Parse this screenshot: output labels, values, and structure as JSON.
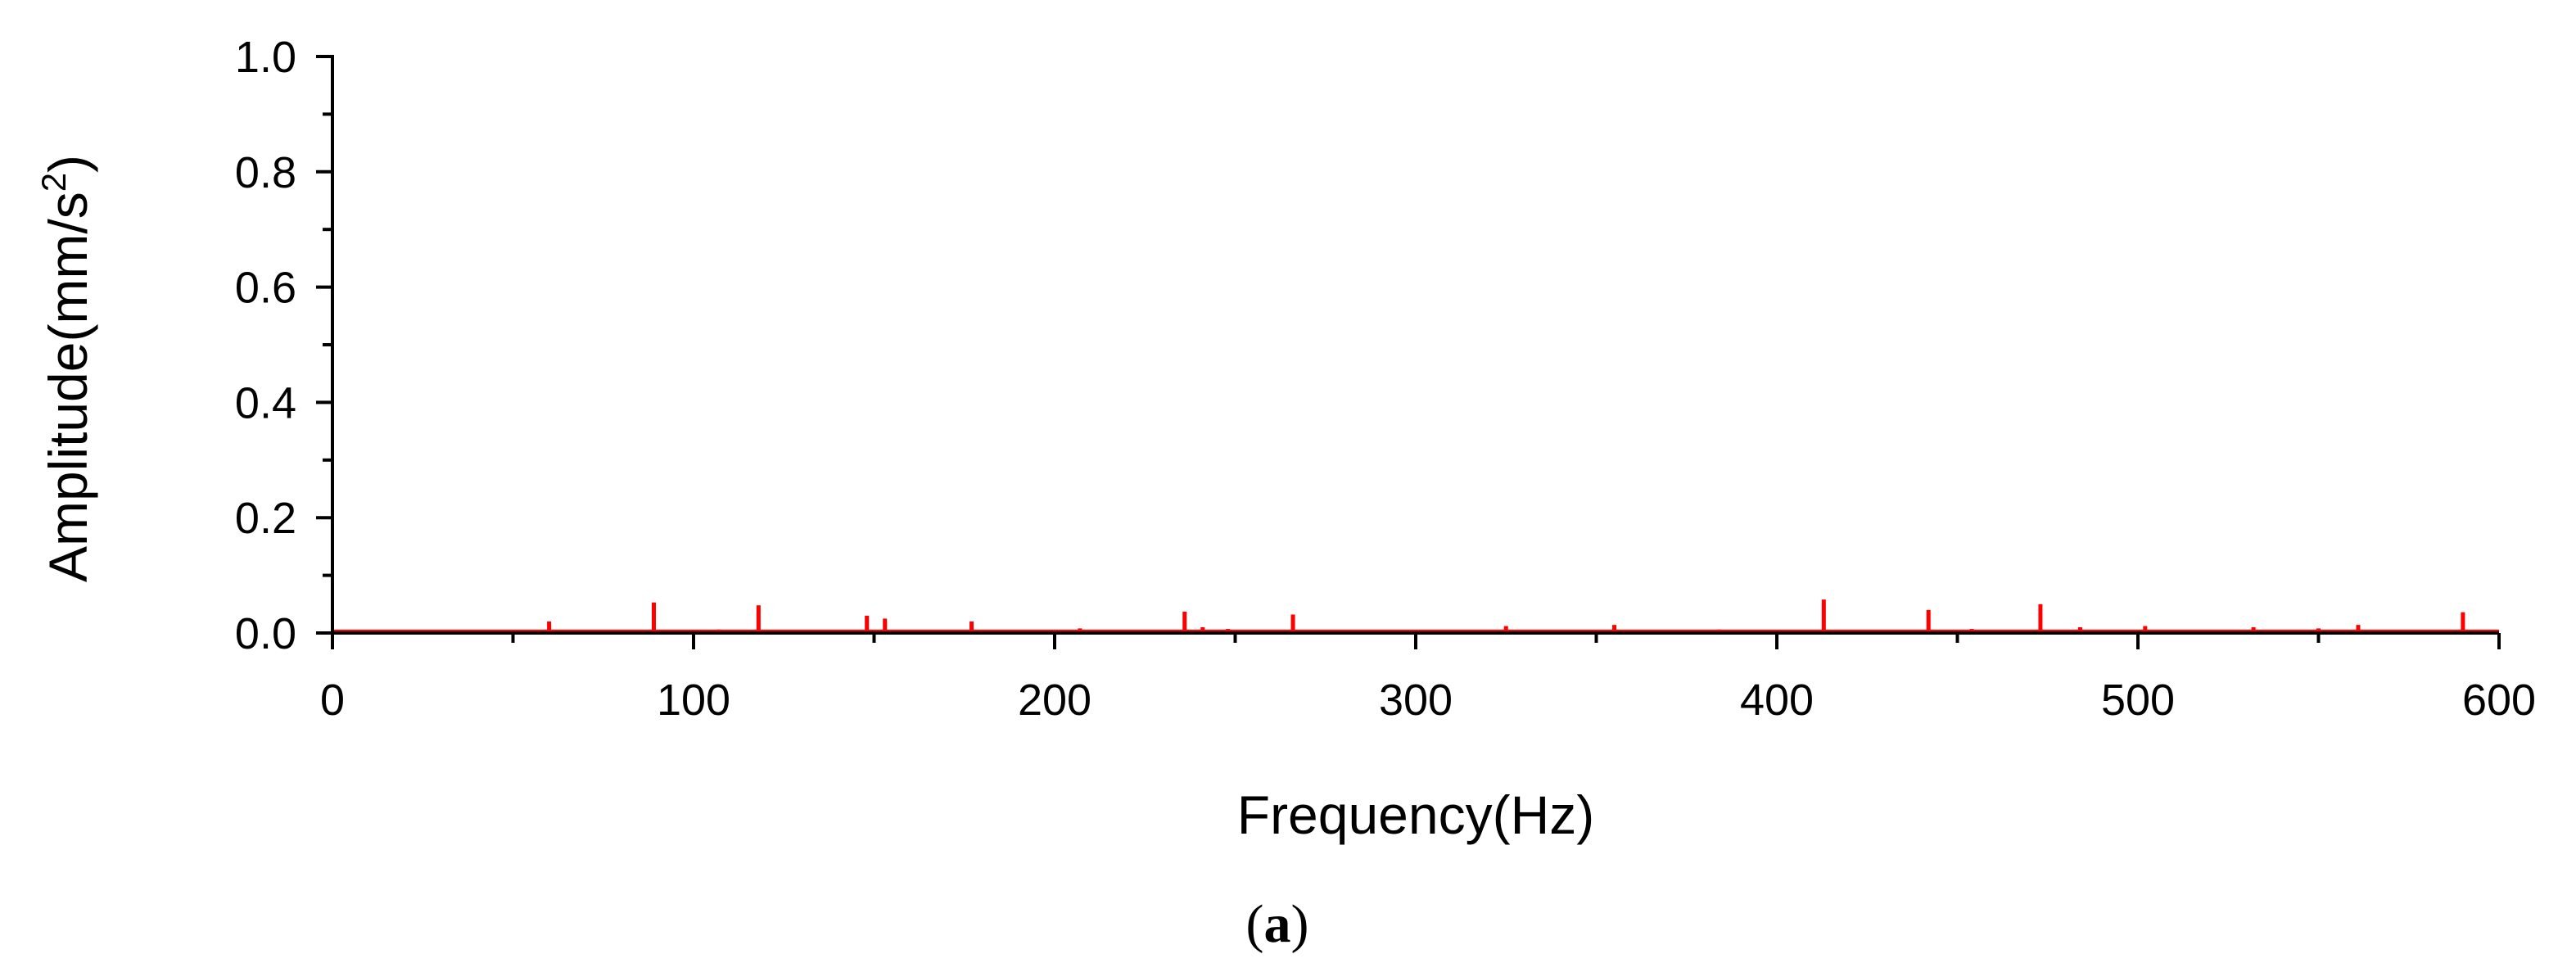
{
  "chart_data": {
    "type": "line",
    "title": "",
    "xlabel": "Frequency(Hz)",
    "ylabel_main": "Amplitude(mm/s",
    "ylabel_sup": "2",
    "ylabel_end": ")",
    "xlim": [
      0,
      600
    ],
    "ylim": [
      0,
      1.0
    ],
    "x_ticks": [
      "0",
      "100",
      "200",
      "300",
      "400",
      "500",
      "600"
    ],
    "y_ticks": [
      "0.0",
      "0.2",
      "0.4",
      "0.6",
      "0.8",
      "1.0"
    ],
    "grid": false,
    "legend": "none",
    "series": [
      {
        "color": "#ff0000",
        "baseline": 0.003,
        "peaks": [
          {
            "x": 60,
            "y": 0.02
          },
          {
            "x": 89,
            "y": 0.053
          },
          {
            "x": 107,
            "y": 0.006
          },
          {
            "x": 118,
            "y": 0.048
          },
          {
            "x": 148,
            "y": 0.03
          },
          {
            "x": 153,
            "y": 0.025
          },
          {
            "x": 177,
            "y": 0.02
          },
          {
            "x": 207,
            "y": 0.008
          },
          {
            "x": 236,
            "y": 0.037
          },
          {
            "x": 241,
            "y": 0.01
          },
          {
            "x": 248,
            "y": 0.007
          },
          {
            "x": 266,
            "y": 0.032
          },
          {
            "x": 325,
            "y": 0.012
          },
          {
            "x": 355,
            "y": 0.014
          },
          {
            "x": 384,
            "y": 0.006
          },
          {
            "x": 413,
            "y": 0.058
          },
          {
            "x": 442,
            "y": 0.04
          },
          {
            "x": 454,
            "y": 0.007
          },
          {
            "x": 473,
            "y": 0.05
          },
          {
            "x": 484,
            "y": 0.01
          },
          {
            "x": 502,
            "y": 0.012
          },
          {
            "x": 532,
            "y": 0.01
          },
          {
            "x": 550,
            "y": 0.008
          },
          {
            "x": 561,
            "y": 0.014
          },
          {
            "x": 590,
            "y": 0.036
          }
        ]
      }
    ]
  },
  "caption": "(a)"
}
